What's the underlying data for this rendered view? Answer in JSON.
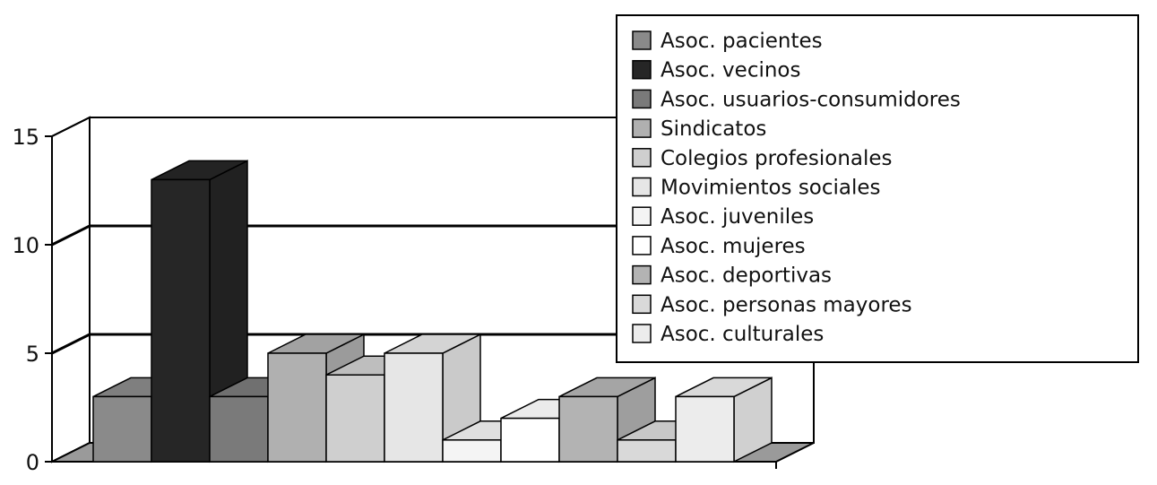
{
  "chart_data": {
    "type": "bar",
    "title": "",
    "xlabel": "",
    "ylabel": "",
    "ylim": [
      0,
      15
    ],
    "yticks": [
      "0",
      "5",
      "10",
      "15"
    ],
    "grid": true,
    "three_d": true,
    "legend_position": "top-right",
    "series": [
      {
        "name": "Asoc. pacientes",
        "value": 3,
        "color": "#8a8a8a"
      },
      {
        "name": "Asoc. vecinos",
        "value": 13,
        "color": "#262626"
      },
      {
        "name": "Asoc. usuarios-consumidores",
        "value": 3,
        "color": "#7a7a7a"
      },
      {
        "name": "Sindicatos",
        "value": 5,
        "color": "#b0b0b0"
      },
      {
        "name": "Colegios profesionales",
        "value": 4,
        "color": "#cfcfcf"
      },
      {
        "name": "Movimientos sociales",
        "value": 5,
        "color": "#e6e6e6"
      },
      {
        "name": "Asoc. juveniles",
        "value": 1,
        "color": "#f4f4f4"
      },
      {
        "name": "Asoc. mujeres",
        "value": 2,
        "color": "#ffffff"
      },
      {
        "name": "Asoc. deportivas",
        "value": 3,
        "color": "#b3b3b3"
      },
      {
        "name": "Asoc. personas mayores",
        "value": 1,
        "color": "#d9d9d9"
      },
      {
        "name": "Asoc. culturales",
        "value": 3,
        "color": "#ececec"
      }
    ]
  }
}
